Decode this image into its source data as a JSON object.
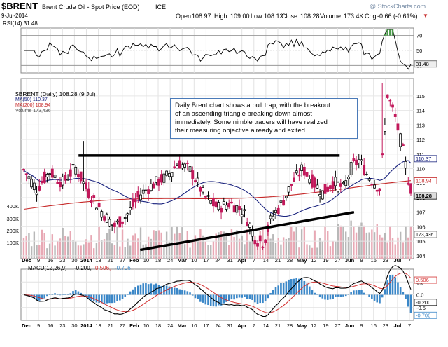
{
  "header": {
    "symbol": "$BRENT",
    "name": "Brent Crude Oil - Spot Price (EOD)",
    "exchange": "ICE",
    "date": "9-Jul-2014",
    "watermark": "@ StockCharts.com",
    "open_label": "Open",
    "open": "108.97",
    "high_label": "High",
    "high": "109.00",
    "low_label": "Low",
    "low": "108.12",
    "close_label": "Close",
    "close": "108.28",
    "volume_label": "Volume",
    "volume": "173.4K",
    "chg_label": "Chg",
    "chg": "-0.66 (-0.61%)",
    "down_arrow": "▼"
  },
  "rsi_legend": "RSI(14) 31.48",
  "price_legend": {
    "title": "$BRENT (Daily) 108.28 (9 Jul)",
    "ma50": "MA(50) 110.37",
    "ma200": "MA(200) 108.94",
    "volume": "Volume 173,436"
  },
  "macd_legend": {
    "prefix": "MACD(12,26,9)",
    "v1": "-0.200,",
    "v2": "0.506,",
    "v3": "-0.706"
  },
  "annotation": [
    "Daily Brent chart shows a bull trap, with the breakout",
    "of an ascending triangle breaking down almost",
    "immediately. Some nimble traders will have realized",
    "their measuring objective already and exited"
  ],
  "chart_data": [
    {
      "type": "line",
      "title": "RSI(14) 31.48",
      "ylim": [
        20,
        80
      ],
      "yticks": [
        "70",
        "50",
        "30"
      ],
      "reference_lines": [
        70,
        30
      ],
      "last_value_label": "31.48"
    },
    {
      "type": "candlestick",
      "title": "$BRENT (Daily) 108.28 (9 Jul)",
      "ylim": [
        103.8,
        116.2
      ],
      "yticks": [
        "115",
        "114",
        "113",
        "112",
        "111",
        "110",
        "109",
        "108",
        "107",
        "106",
        "105",
        "104"
      ],
      "price_labels": [
        "110.37",
        "108.94",
        "108.28"
      ],
      "volume_ticks": [
        "400K",
        "300K",
        "200K",
        "100K"
      ],
      "volume_last_label": "173,436",
      "x_tick_labels": [
        "Dec",
        "9",
        "16",
        "23",
        "30",
        "2014",
        "13",
        "21",
        "27",
        "Feb",
        "10",
        "18",
        "24",
        "Mar",
        "10",
        "17",
        "24",
        "31",
        "Apr",
        "7",
        "14",
        "21",
        "28",
        "May",
        "12",
        "19",
        "27",
        "Jun",
        "9",
        "16",
        "23",
        "Jul",
        "7"
      ],
      "trendlines": [
        {
          "label": "resistance",
          "from": [
            1.0,
            110.9
          ],
          "to": [
            2.27,
            110.9
          ]
        },
        {
          "label": "support",
          "from": [
            1.3,
            104.4
          ],
          "to": [
            2.34,
            107.0
          ]
        }
      ],
      "series": [
        {
          "name": "MA(50) 110.37",
          "color": "#1a237e"
        },
        {
          "name": "MA(200) 108.94",
          "color": "#c62828"
        }
      ]
    },
    {
      "type": "line",
      "title": "MACD(12,26,9) -0.200, 0.506, -0.706",
      "ylim": [
        -1.0,
        1.0
      ],
      "yticks": [
        "0.5",
        "0.0",
        "-0.5"
      ],
      "value_labels": [
        "0.506",
        "-0.200",
        "-0.706"
      ],
      "series": [
        {
          "name": "MACD(12,26,9)",
          "color": "#000000"
        },
        {
          "name": "Signal",
          "color": "#d32f2f"
        },
        {
          "name": "Histogram",
          "color": "#3a87c8"
        }
      ],
      "x_tick_labels": [
        "Dec",
        "9",
        "16",
        "23",
        "30",
        "2014",
        "13",
        "21",
        "27",
        "Feb",
        "10",
        "18",
        "24",
        "Mar",
        "10",
        "17",
        "24",
        "31",
        "Apr",
        "7",
        "14",
        "21",
        "28",
        "May",
        "12",
        "19",
        "27",
        "Jun",
        "9",
        "16",
        "23",
        "Jul",
        "7"
      ]
    }
  ]
}
